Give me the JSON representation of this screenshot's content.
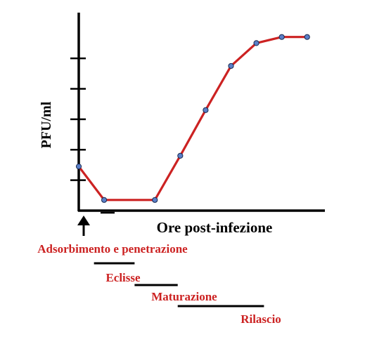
{
  "chart_data": {
    "type": "line",
    "ylabel": "PFU/ml",
    "xlabel": "Ore post-infezione",
    "x": [
      0,
      1,
      3,
      4,
      5,
      6,
      7,
      8,
      9
    ],
    "series": [
      {
        "values": [
          1.45,
          0.35,
          0.35,
          1.8,
          3.3,
          4.75,
          5.5,
          5.7,
          5.7
        ]
      }
    ],
    "ylim": [
      0,
      6.5
    ],
    "xlim": [
      0,
      9.7
    ],
    "yticks": [
      1,
      2,
      3,
      4,
      5
    ],
    "grid": false,
    "colors": {
      "line": "#cc2222",
      "marker": "#5a7fc8",
      "marker_edge": "#1a2a50",
      "axis": "#000000",
      "label_red": "#cc2222"
    },
    "phases": [
      {
        "label": "Adsorbimento e penetrazione",
        "start": 0,
        "end": 1
      },
      {
        "label": "Eclisse",
        "start": 0.6,
        "end": 2.2
      },
      {
        "label": "Maturazione",
        "start": 2.2,
        "end": 3.9
      },
      {
        "label": "Rilascio",
        "start": 3.9,
        "end": 7.3
      }
    ]
  }
}
